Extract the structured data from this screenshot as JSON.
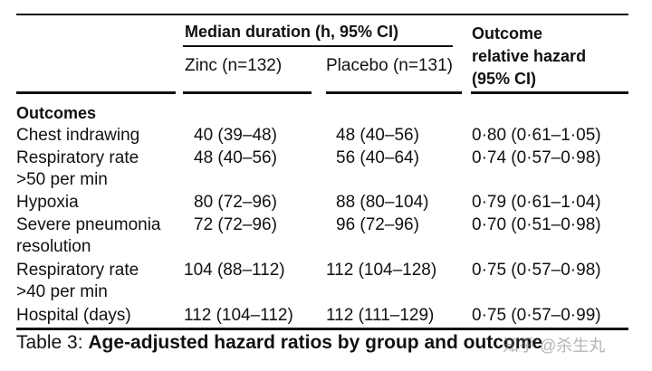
{
  "header": {
    "median_group": "Median duration (h, 95% CI)",
    "outcome_hazard_lines": [
      "Outcome",
      "relative hazard",
      "(95% CI)"
    ],
    "zinc": "Zinc (n=132)",
    "placebo": "Placebo (n=131)"
  },
  "section_title": "Outcomes",
  "rows": [
    {
      "label": [
        "Chest indrawing"
      ],
      "zinc": "40 (39–48)",
      "placebo": "48 (40–56)",
      "hazard": "0·80 (0·61–1·05)"
    },
    {
      "label": [
        "Respiratory rate",
        ">50 per min"
      ],
      "zinc": "48 (40–56)",
      "placebo": "56 (40–64)",
      "hazard": "0·74 (0·57–0·98)"
    },
    {
      "label": [
        "Hypoxia"
      ],
      "zinc": "80 (72–96)",
      "placebo": "88 (80–104)",
      "hazard": "0·79 (0·61–1·04)"
    },
    {
      "label": [
        "Severe pneumonia",
        "resolution"
      ],
      "zinc": "72 (72–96)",
      "placebo": "96 (72–96)",
      "hazard": "0·70 (0·51–0·98)"
    },
    {
      "label": [
        "Respiratory rate",
        ">40 per min"
      ],
      "zinc": "104 (88–112)",
      "placebo": "112 (104–128)",
      "hazard": "0·75 (0·57–0·98)"
    },
    {
      "label": [
        "Hospital (days)"
      ],
      "zinc": "112 (104–112)",
      "placebo": "112 (111–129)",
      "hazard": "0·75 (0·57–0·99)"
    }
  ],
  "caption": {
    "prefix": "Table 3: ",
    "title": "Age-adjusted hazard ratios by group and outcome"
  },
  "watermark": "知乎 @杀生丸"
}
